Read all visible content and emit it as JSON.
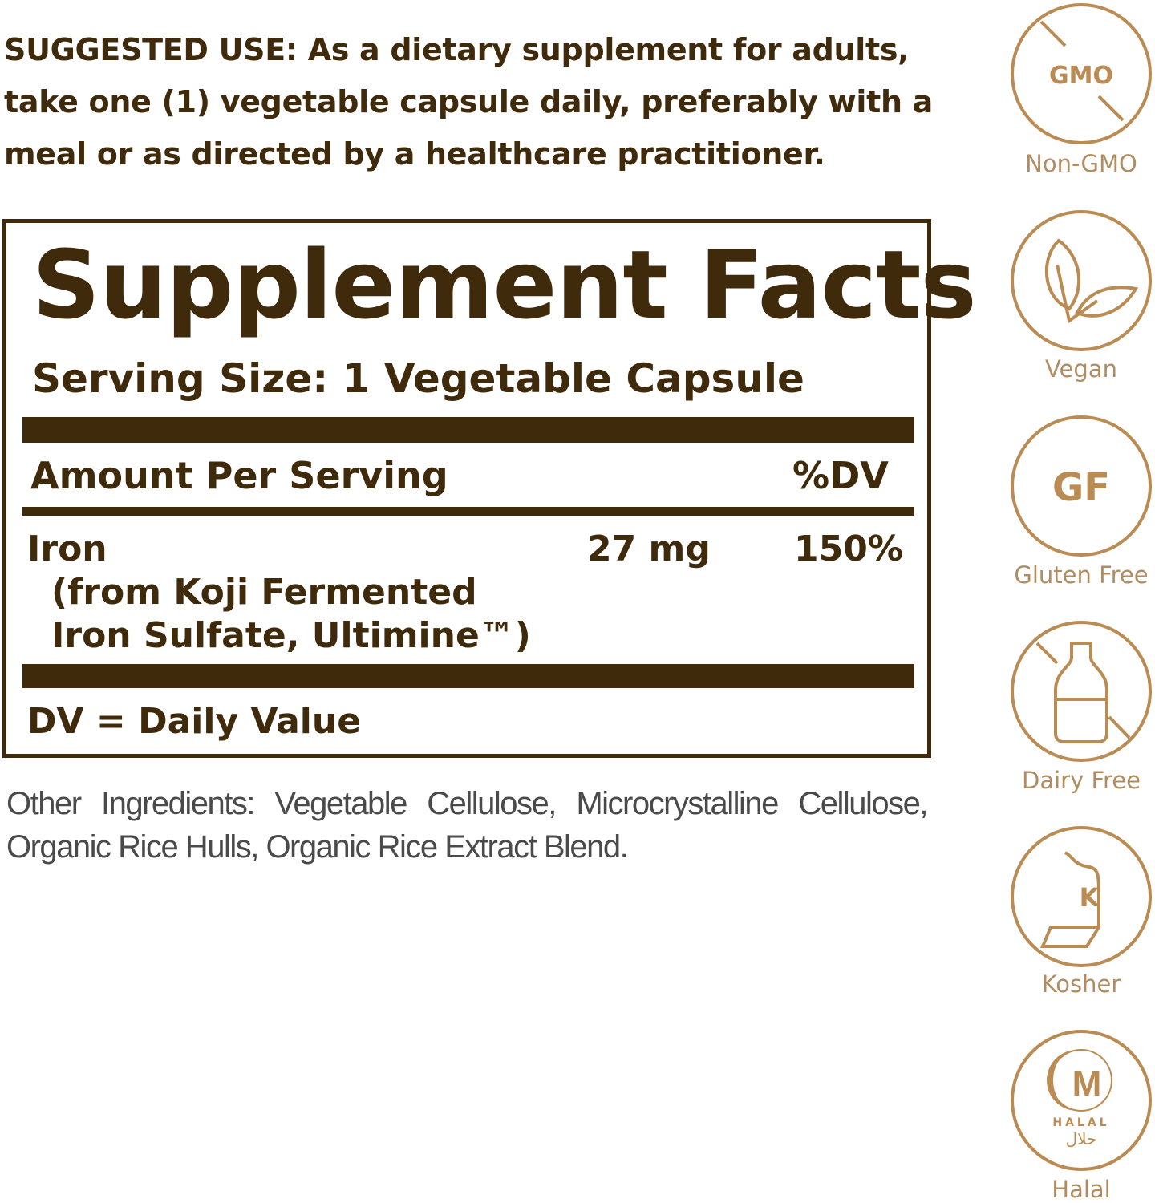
{
  "suggested_use": "SUGGESTED USE: As a dietary supplement for adults, take one (1) vegetable capsule daily, preferably with a meal or as directed by a healthcare practitioner.",
  "facts": {
    "title": "Supplement Facts",
    "serving_size": "Serving Size: 1 Vegetable Capsule",
    "amount_header": "Amount Per Serving",
    "dv_header": "%DV",
    "nutrient": {
      "name": "Iron",
      "source_line1": "(from Koji Fermented",
      "source_line2": "Iron Sulfate, Ultimine™)",
      "amount": "27 mg",
      "dv": "150%"
    },
    "footnote": "DV = Daily Value"
  },
  "other_ingredients": "Other Ingredients: Vegetable Cellulose, Microcrystalline Cellulose, Organic Rice Hulls, Organic Rice Extract Blend.",
  "badges": [
    {
      "icon": "non-gmo-icon",
      "label": "Non-GMO",
      "glyph": "GMO"
    },
    {
      "icon": "vegan-leaf-icon",
      "label": "Vegan"
    },
    {
      "icon": "gluten-free-icon",
      "label": "Gluten Free",
      "glyph": "GF"
    },
    {
      "icon": "dairy-free-bottle-icon",
      "label": "Dairy Free"
    },
    {
      "icon": "kosher-icon",
      "label": "Kosher",
      "glyph": "K"
    },
    {
      "icon": "halal-icon",
      "label": "Halal",
      "glyph": "M",
      "sub": "HALAL",
      "arabic": "حلال"
    }
  ],
  "colors": {
    "text": "#3f2a0c",
    "badge": "#ba8b52",
    "badge_label": "#b08c60",
    "ingredients": "#4a4a4a"
  }
}
